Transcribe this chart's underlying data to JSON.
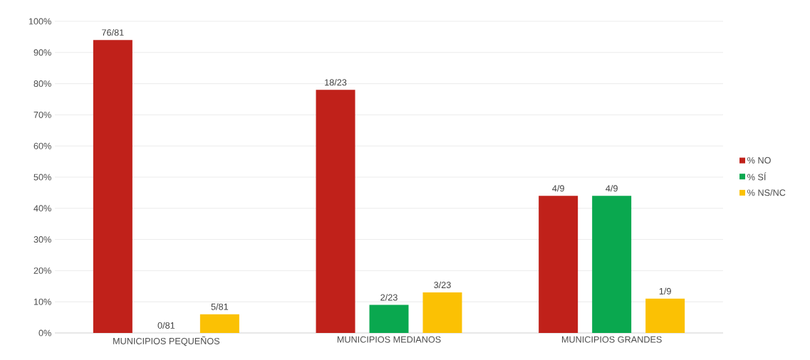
{
  "chart_data": {
    "type": "bar",
    "categories": [
      "MUNICIPIOS PEQUEÑOS",
      "MUNICIPIOS MEDIANOS",
      "MUNICIPIOS GRANDES"
    ],
    "series": [
      {
        "name": "% NO",
        "color": "#c0211a",
        "values": [
          94,
          78,
          44
        ],
        "value_labels": [
          "76/81",
          "18/23",
          "4/9"
        ]
      },
      {
        "name": "% SÍ",
        "color": "#0aa84f",
        "values": [
          0,
          9,
          44
        ],
        "value_labels": [
          "0/81",
          "2/23",
          "4/9"
        ]
      },
      {
        "name": "% NS/NC",
        "color": "#fbc104",
        "values": [
          6,
          13,
          11
        ],
        "value_labels": [
          "5/81",
          "3/23",
          "1/9"
        ]
      }
    ],
    "ylim": [
      0,
      100
    ],
    "yticks": [
      {
        "value": 0,
        "label": "0%"
      },
      {
        "value": 10,
        "label": "10%"
      },
      {
        "value": 20,
        "label": "20%"
      },
      {
        "value": 30,
        "label": "30%"
      },
      {
        "value": 40,
        "label": "40%"
      },
      {
        "value": 50,
        "label": "50%"
      },
      {
        "value": 60,
        "label": "60%"
      },
      {
        "value": 70,
        "label": "70%"
      },
      {
        "value": 80,
        "label": "80%"
      },
      {
        "value": 90,
        "label": "90%"
      },
      {
        "value": 100,
        "label": "100%"
      }
    ],
    "grid": "y",
    "legend": "right"
  }
}
